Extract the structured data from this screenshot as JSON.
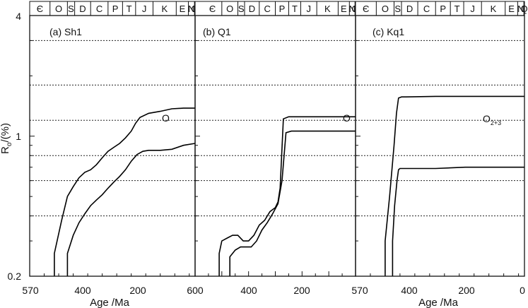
{
  "figure": {
    "ylabel_main": "R",
    "ylabel_sub": "o",
    "ylabel_unit": "/(%)"
  },
  "stratigraphy": [
    "Є",
    "O",
    "S",
    "D",
    "C",
    "P",
    "T",
    "J",
    "K",
    "E",
    "N",
    "Q"
  ],
  "chart_data": [
    {
      "type": "line",
      "panel_label": "(a) Sh1",
      "unit_label": "O",
      "unit_sub": "",
      "xlabel": "Age /Ma",
      "xlim": [
        570,
        0
      ],
      "xticks": [
        570,
        400,
        200,
        0
      ],
      "xtick_labels": [
        "570",
        "400",
        "200",
        "0"
      ],
      "ylabel": "Ro/(%)",
      "ylim": [
        0.2,
        4
      ],
      "yscale": "log",
      "yticks": [
        0.2,
        1,
        4
      ],
      "ytick_labels": [
        "0.2",
        "1",
        "4"
      ],
      "hlines": [
        0.4,
        0.6,
        0.8,
        1.2,
        1.8,
        3.0
      ],
      "series": [
        {
          "x": [
            485,
            485,
            460,
            440,
            420,
            400,
            380,
            360,
            340,
            320,
            300,
            280,
            260,
            240,
            220,
            205,
            190,
            160,
            120,
            80,
            40,
            0
          ],
          "y": [
            0.2,
            0.26,
            0.38,
            0.5,
            0.56,
            0.62,
            0.66,
            0.68,
            0.72,
            0.78,
            0.84,
            0.88,
            0.92,
            0.98,
            1.06,
            1.16,
            1.24,
            1.3,
            1.33,
            1.37,
            1.38,
            1.38
          ]
        },
        {
          "x": [
            440,
            440,
            420,
            400,
            380,
            360,
            340,
            320,
            300,
            280,
            260,
            240,
            220,
            200,
            180,
            160,
            120,
            80,
            40,
            0
          ],
          "y": [
            0.2,
            0.26,
            0.32,
            0.37,
            0.41,
            0.45,
            0.48,
            0.51,
            0.55,
            0.59,
            0.63,
            0.68,
            0.75,
            0.81,
            0.84,
            0.85,
            0.85,
            0.86,
            0.9,
            0.92
          ]
        }
      ]
    },
    {
      "type": "line",
      "panel_label": "(b) Q1",
      "unit_label": "O",
      "unit_sub": "",
      "xlabel": "",
      "xlim": [
        600,
        0
      ],
      "xticks": [
        600,
        400,
        200,
        0
      ],
      "xtick_labels": [
        "600",
        "400",
        "200",
        "0"
      ],
      "ylim": [
        0.2,
        4
      ],
      "yscale": "log",
      "hlines": [
        0.4,
        0.6,
        0.8,
        1.2,
        1.8,
        3.0
      ],
      "series": [
        {
          "x": [
            510,
            510,
            500,
            480,
            460,
            440,
            420,
            400,
            380,
            360,
            340,
            320,
            300,
            290,
            282,
            270,
            250,
            200,
            100,
            0
          ],
          "y": [
            0.2,
            0.26,
            0.3,
            0.31,
            0.32,
            0.32,
            0.3,
            0.3,
            0.32,
            0.36,
            0.38,
            0.42,
            0.44,
            0.47,
            0.55,
            1.22,
            1.25,
            1.25,
            1.25,
            1.25
          ]
        },
        {
          "x": [
            470,
            470,
            450,
            430,
            410,
            390,
            370,
            350,
            330,
            310,
            290,
            275,
            260,
            240,
            200,
            100,
            0
          ],
          "y": [
            0.2,
            0.25,
            0.27,
            0.28,
            0.28,
            0.28,
            0.3,
            0.34,
            0.37,
            0.41,
            0.46,
            0.6,
            1.04,
            1.06,
            1.06,
            1.06,
            1.06
          ]
        }
      ]
    },
    {
      "type": "line",
      "panel_label": "(c) Kq1",
      "unit_label": "O",
      "unit_sub": "2+3",
      "xlabel": "Age /Ma",
      "xlim": [
        570,
        0
      ],
      "xticks": [
        570,
        400,
        200,
        0
      ],
      "xtick_labels": [
        "570",
        "400",
        "200",
        "0"
      ],
      "ylim": [
        0.2,
        4
      ],
      "yscale": "log",
      "hlines": [
        0.4,
        0.6,
        0.8,
        1.2,
        1.8,
        3.0
      ],
      "series": [
        {
          "x": [
            470,
            470,
            455,
            440,
            432,
            425,
            415,
            400,
            300,
            200,
            100,
            0
          ],
          "y": [
            0.2,
            0.3,
            0.5,
            0.9,
            1.3,
            1.55,
            1.57,
            1.57,
            1.58,
            1.58,
            1.58,
            1.58
          ]
        },
        {
          "x": [
            445,
            445,
            438,
            430,
            425,
            420,
            400,
            300,
            200,
            100,
            0
          ],
          "y": [
            0.2,
            0.3,
            0.45,
            0.6,
            0.68,
            0.69,
            0.69,
            0.69,
            0.7,
            0.7,
            0.7
          ]
        }
      ]
    }
  ]
}
